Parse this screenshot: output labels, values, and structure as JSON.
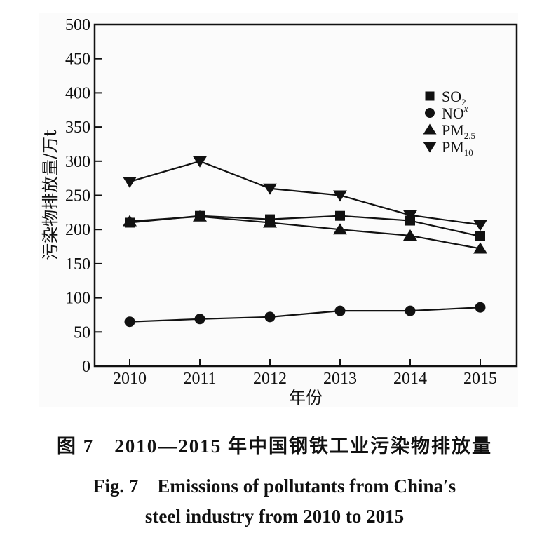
{
  "chart_data": {
    "type": "line",
    "title": "",
    "xlabel": "年份",
    "ylabel": "污染物排放量/万t",
    "x": [
      "2010",
      "2011",
      "2012",
      "2013",
      "2014",
      "2015"
    ],
    "ylim": [
      0,
      500
    ],
    "yticks": [
      0,
      50,
      100,
      150,
      200,
      250,
      300,
      350,
      400,
      450,
      500
    ],
    "grid": false,
    "legend_position": "top-right",
    "series": [
      {
        "name": "SO2",
        "label_main": "SO",
        "label_sub": "2",
        "marker": "square",
        "values": [
          210,
          220,
          215,
          220,
          213,
          190
        ]
      },
      {
        "name": "NOx",
        "label_main": "NO",
        "label_sub": "x",
        "marker": "circle",
        "values": [
          65,
          69,
          72,
          81,
          81,
          86
        ]
      },
      {
        "name": "PM2.5",
        "label_main": "PM",
        "label_sub": "2.5",
        "marker": "triangle-up",
        "values": [
          212,
          219,
          210,
          200,
          191,
          172
        ]
      },
      {
        "name": "PM10",
        "label_main": "PM",
        "label_sub": "10",
        "marker": "triangle-down",
        "values": [
          270,
          300,
          260,
          250,
          221,
          207
        ]
      }
    ]
  },
  "caption": {
    "cn": "图 7　2010—2015 年中国钢铁工业污染物排放量",
    "en_line1": "Fig. 7　Emissions of pollutants from China′s",
    "en_line2": "steel industry from 2010 to 2015"
  },
  "colors": {
    "ink": "#111111"
  }
}
